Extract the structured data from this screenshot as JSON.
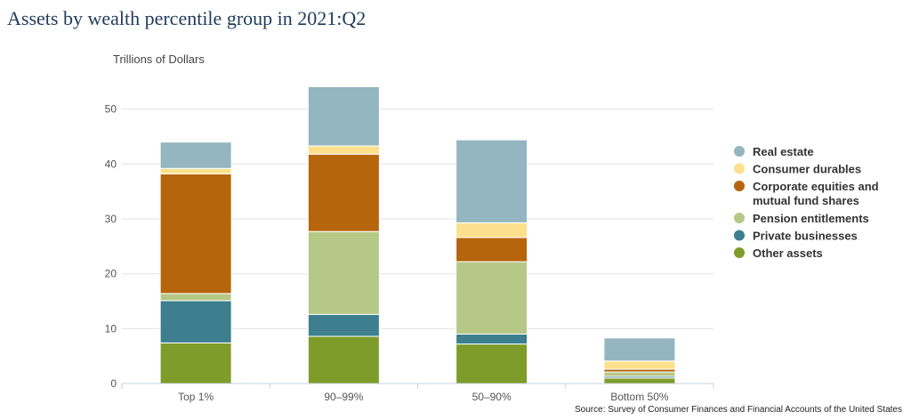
{
  "title": "Assets by wealth percentile group in 2021:Q2",
  "source": "Source: Survey of Consumer Finances and Financial Accounts of the United States",
  "chart_data": {
    "type": "bar",
    "stacked": true,
    "ylabel": "Trillions of Dollars",
    "ylim": [
      0,
      54
    ],
    "yticks": [
      0,
      10,
      20,
      30,
      40,
      50
    ],
    "grid": true,
    "legend_position": "right",
    "categories": [
      "Top 1%",
      "90–99%",
      "50–90%",
      "Bottom 50%"
    ],
    "series": [
      {
        "name": "Other assets",
        "color": "#7e9c2a",
        "values": [
          7.4,
          8.6,
          7.2,
          1.0
        ]
      },
      {
        "name": "Private businesses",
        "color": "#3d7f8e",
        "values": [
          7.7,
          4.0,
          1.8,
          0.3
        ]
      },
      {
        "name": "Pension entitlements",
        "color": "#b6c886",
        "values": [
          1.3,
          15.1,
          13.2,
          0.8
        ]
      },
      {
        "name": "Corporate equities and mutual fund shares",
        "label_lines": [
          "Corporate equities and",
          "mutual fund shares"
        ],
        "color": "#b5650c",
        "values": [
          21.8,
          14.1,
          4.4,
          0.5
        ]
      },
      {
        "name": "Consumer durables",
        "color": "#fde08e",
        "values": [
          1.0,
          1.5,
          2.7,
          1.5
        ]
      },
      {
        "name": "Real estate",
        "color": "#93b6c0",
        "values": [
          4.8,
          10.8,
          15.1,
          4.2
        ]
      }
    ]
  }
}
